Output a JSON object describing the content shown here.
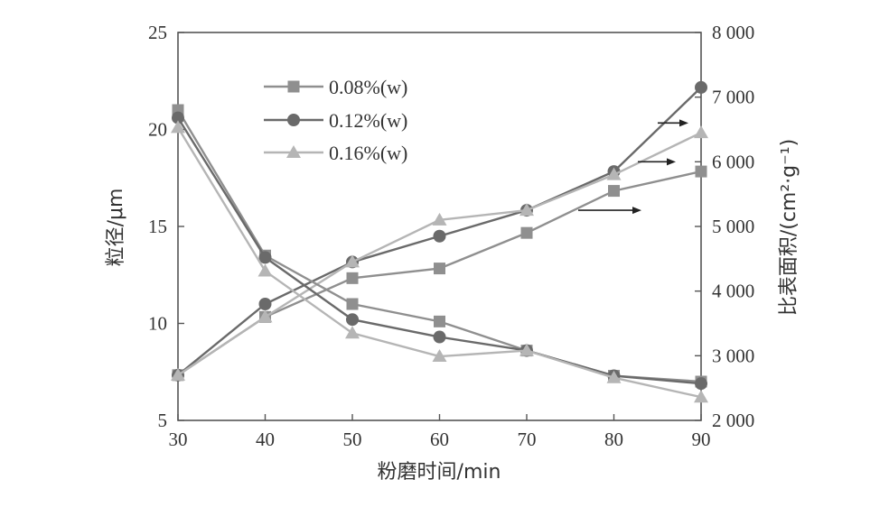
{
  "chart_data": {
    "type": "line",
    "xlabel": "粉磨时间/min",
    "ylabel_left": "粒径/μm",
    "ylabel_right": "比表面积/(cm²·g⁻¹)",
    "x": [
      30,
      40,
      50,
      60,
      70,
      80,
      90
    ],
    "xlim": [
      30,
      90
    ],
    "ylim_left": [
      5,
      25
    ],
    "ylim_right": [
      2000,
      8000
    ],
    "x_ticks": [
      "30",
      "40",
      "50",
      "60",
      "70",
      "80",
      "90"
    ],
    "y_left_ticks": [
      "5",
      "10",
      "15",
      "20",
      "25"
    ],
    "y_right_ticks": [
      "2 000",
      "3 000",
      "4 000",
      "5 000",
      "6 000",
      "7 000",
      "8 000"
    ],
    "grid": false,
    "legend_position": "top-left",
    "legend": [
      "0.08%(w)",
      "0.12%(w)",
      "0.16%(w)"
    ],
    "series": [
      {
        "name": "0.08%(w)",
        "marker": "square",
        "color": "#8f8f8f",
        "axis": "left",
        "values": [
          21.0,
          13.5,
          11.0,
          10.1,
          8.6,
          7.3,
          7.0
        ]
      },
      {
        "name": "0.12%(w)",
        "marker": "circle",
        "color": "#6a6a6a",
        "axis": "left",
        "values": [
          20.6,
          13.4,
          10.2,
          9.3,
          8.6,
          7.3,
          6.9
        ]
      },
      {
        "name": "0.16%(w)",
        "marker": "triangle",
        "color": "#b5b5b5",
        "axis": "left",
        "values": [
          20.1,
          12.7,
          9.5,
          8.3,
          8.6,
          7.2,
          6.2
        ]
      },
      {
        "name": "0.08%(w)",
        "marker": "square",
        "color": "#8f8f8f",
        "axis": "right",
        "values": [
          2700,
          3600,
          4200,
          4350,
          4900,
          5550,
          5850
        ]
      },
      {
        "name": "0.12%(w)",
        "marker": "circle",
        "color": "#6a6a6a",
        "axis": "right",
        "values": [
          2700,
          3800,
          4450,
          4850,
          5250,
          5850,
          7150
        ]
      },
      {
        "name": "0.16%(w)",
        "marker": "triangle",
        "color": "#b5b5b5",
        "axis": "right",
        "values": [
          2700,
          3600,
          4450,
          5100,
          5250,
          5800,
          6450
        ]
      }
    ],
    "annotations": [
      {
        "type": "arrow",
        "direction": "right",
        "points_to": "right-axis",
        "series": "0.12%(w)"
      },
      {
        "type": "arrow",
        "direction": "right",
        "points_to": "right-axis",
        "series": "0.16%(w)"
      },
      {
        "type": "arrow",
        "direction": "right",
        "points_to": "right-axis",
        "series": "0.08%(w)"
      }
    ]
  }
}
